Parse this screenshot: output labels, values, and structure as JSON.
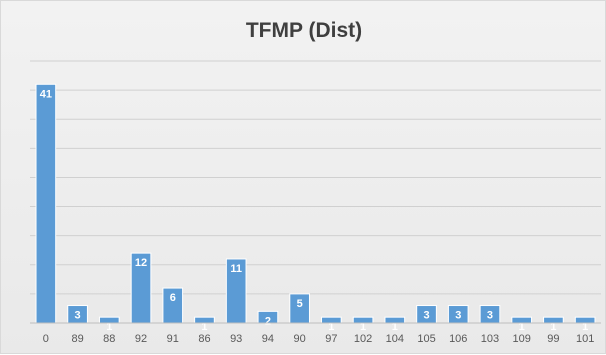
{
  "chart_data": {
    "type": "bar",
    "title": "TFMP (Dist)",
    "xlabel": "",
    "ylabel": "",
    "categories": [
      "0",
      "89",
      "88",
      "92",
      "91",
      "86",
      "93",
      "94",
      "90",
      "97",
      "102",
      "104",
      "105",
      "106",
      "103",
      "109",
      "99",
      "101"
    ],
    "values": [
      41,
      3,
      1,
      12,
      6,
      1,
      11,
      2,
      5,
      1,
      1,
      1,
      3,
      3,
      3,
      1,
      1,
      1
    ],
    "ylim": [
      0,
      45
    ],
    "grid": true,
    "legend": "none",
    "colors": {
      "bar": "#5b9bd5"
    }
  }
}
